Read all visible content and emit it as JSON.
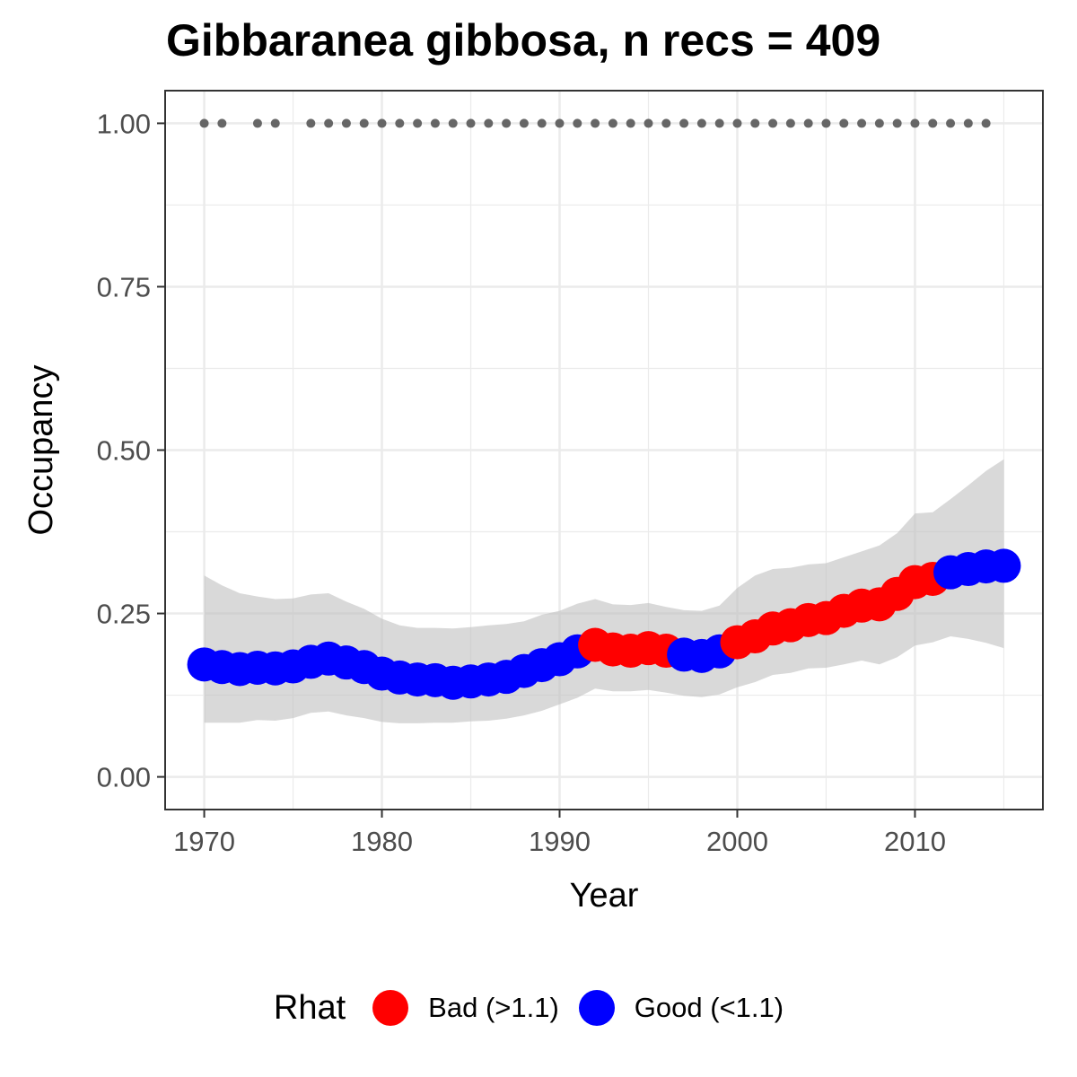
{
  "chart_data": {
    "type": "line",
    "title": "Gibbaranea gibbosa, n recs = 409",
    "xlabel": "Year",
    "ylabel": "Occupancy",
    "xlim": [
      1967.8,
      2017.2
    ],
    "ylim": [
      -0.05,
      1.05
    ],
    "x_ticks": [
      1970,
      1980,
      1990,
      2000,
      2010
    ],
    "x_tick_labels": [
      "1970",
      "1980",
      "1990",
      "2000",
      "2010"
    ],
    "y_ticks": [
      0,
      0.25,
      0.5,
      0.75,
      1
    ],
    "y_tick_labels": [
      "0.00",
      "0.25",
      "0.50",
      "0.75",
      "1.00"
    ],
    "grid": true,
    "legend": {
      "title": "Rhat",
      "position": "bottom",
      "entries": [
        {
          "label": "Bad (>1.1)",
          "color": "#ff0000"
        },
        {
          "label": "Good (<1.1)",
          "color": "#0000ff"
        }
      ]
    },
    "colors": {
      "bad": "#ff0000",
      "good": "#0000ff",
      "ribbon": "#bfbfbf",
      "records": "#666666"
    },
    "x": [
      1970,
      1971,
      1972,
      1973,
      1974,
      1975,
      1976,
      1977,
      1978,
      1979,
      1980,
      1981,
      1982,
      1983,
      1984,
      1985,
      1986,
      1987,
      1988,
      1989,
      1990,
      1991,
      1992,
      1993,
      1994,
      1995,
      1996,
      1997,
      1998,
      1999,
      2000,
      2001,
      2002,
      2003,
      2004,
      2005,
      2006,
      2007,
      2008,
      2009,
      2010,
      2011,
      2012,
      2013,
      2014,
      2015
    ],
    "mean": [
      0.172,
      0.168,
      0.165,
      0.167,
      0.166,
      0.169,
      0.176,
      0.181,
      0.175,
      0.168,
      0.158,
      0.152,
      0.149,
      0.148,
      0.144,
      0.146,
      0.149,
      0.153,
      0.162,
      0.171,
      0.18,
      0.192,
      0.202,
      0.195,
      0.193,
      0.197,
      0.193,
      0.187,
      0.185,
      0.192,
      0.206,
      0.215,
      0.227,
      0.232,
      0.24,
      0.243,
      0.254,
      0.262,
      0.264,
      0.28,
      0.298,
      0.303,
      0.313,
      0.318,
      0.322,
      0.323
    ],
    "lower": [
      0.083,
      0.083,
      0.083,
      0.087,
      0.086,
      0.09,
      0.098,
      0.1,
      0.094,
      0.09,
      0.084,
      0.082,
      0.082,
      0.083,
      0.083,
      0.085,
      0.086,
      0.089,
      0.094,
      0.101,
      0.111,
      0.121,
      0.135,
      0.131,
      0.131,
      0.133,
      0.129,
      0.124,
      0.122,
      0.126,
      0.137,
      0.145,
      0.156,
      0.159,
      0.166,
      0.167,
      0.172,
      0.178,
      0.172,
      0.183,
      0.201,
      0.206,
      0.215,
      0.211,
      0.205,
      0.197
    ],
    "upper": [
      0.308,
      0.293,
      0.281,
      0.276,
      0.272,
      0.273,
      0.279,
      0.281,
      0.268,
      0.257,
      0.242,
      0.232,
      0.228,
      0.228,
      0.227,
      0.229,
      0.232,
      0.234,
      0.238,
      0.248,
      0.254,
      0.265,
      0.272,
      0.264,
      0.263,
      0.266,
      0.26,
      0.255,
      0.254,
      0.262,
      0.289,
      0.308,
      0.318,
      0.32,
      0.325,
      0.327,
      0.336,
      0.345,
      0.354,
      0.373,
      0.403,
      0.405,
      0.425,
      0.446,
      0.468,
      0.486
    ],
    "rhat": [
      "good",
      "good",
      "good",
      "good",
      "good",
      "good",
      "good",
      "good",
      "good",
      "good",
      "good",
      "good",
      "good",
      "good",
      "good",
      "good",
      "good",
      "good",
      "good",
      "good",
      "good",
      "good",
      "bad",
      "bad",
      "bad",
      "bad",
      "bad",
      "good",
      "good",
      "good",
      "bad",
      "bad",
      "bad",
      "bad",
      "bad",
      "bad",
      "bad",
      "bad",
      "bad",
      "bad",
      "bad",
      "bad",
      "good",
      "good",
      "good",
      "good"
    ],
    "record_years": [
      1970,
      1971,
      1973,
      1974,
      1976,
      1977,
      1978,
      1979,
      1980,
      1981,
      1982,
      1983,
      1984,
      1985,
      1986,
      1987,
      1988,
      1989,
      1990,
      1991,
      1992,
      1993,
      1994,
      1995,
      1996,
      1997,
      1998,
      1999,
      2000,
      2001,
      2002,
      2003,
      2004,
      2005,
      2006,
      2007,
      2008,
      2009,
      2010,
      2011,
      2012,
      2013,
      2014
    ],
    "record_y": 1
  }
}
